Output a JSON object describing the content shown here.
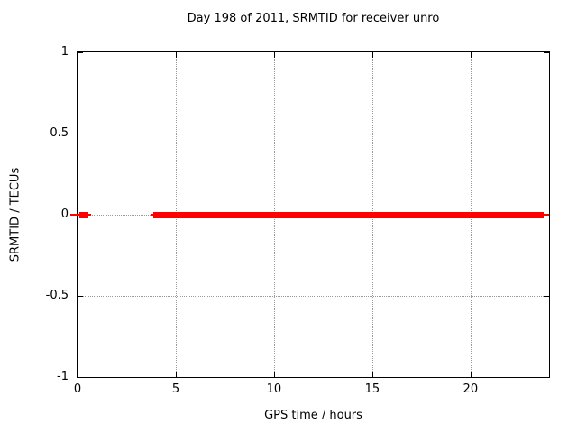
{
  "chart_data": {
    "type": "line",
    "title": "Day 198 of 2011, SRMTID for receiver unro",
    "xlabel": "GPS time / hours",
    "ylabel": "SRMTID / TECUs",
    "xlim": [
      0,
      24
    ],
    "ylim": [
      -1,
      1
    ],
    "xticks": [
      0,
      5,
      10,
      15,
      20
    ],
    "yticks": [
      -1,
      -0.5,
      0,
      0.5,
      1
    ],
    "grid": true,
    "legend": "none",
    "series": [
      {
        "color": "#ff0000",
        "y": 0,
        "thin_segments": [
          {
            "x1": -0.37,
            "x2": 0.69
          },
          {
            "x1": 3.7,
            "x2": 24.0
          }
        ],
        "thick_segments": [
          {
            "x1": 0.07,
            "x2": 0.55
          },
          {
            "x1": 3.84,
            "x2": 23.73
          }
        ]
      }
    ]
  }
}
